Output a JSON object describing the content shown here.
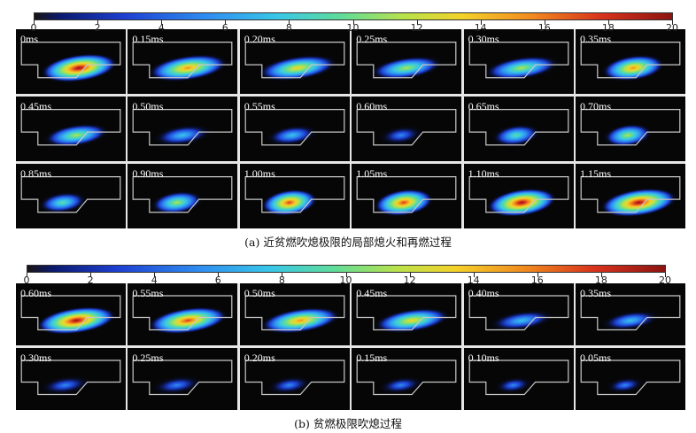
{
  "colorbar": {
    "ticks": [
      "0",
      "2",
      "4",
      "6",
      "8",
      "10",
      "12",
      "14",
      "16",
      "18",
      "20"
    ],
    "gradient": [
      "#1a1414",
      "#0b1a6e",
      "#1d3fd1",
      "#2f8df0",
      "#38c6e8",
      "#5fdc9a",
      "#b9e24a",
      "#f3d22a",
      "#f18a1f",
      "#d8321c",
      "#8c1410"
    ]
  },
  "panel_a": {
    "caption": "(a)  近贫燃吹熄极限的局部熄火和再燃过程",
    "frames": [
      {
        "label": "0ms",
        "intensity": 0.95,
        "spread": 0.75,
        "shift": 0.55
      },
      {
        "label": "0.15ms",
        "intensity": 0.8,
        "spread": 0.8,
        "shift": 0.5
      },
      {
        "label": "0.20ms",
        "intensity": 0.7,
        "spread": 0.8,
        "shift": 0.45
      },
      {
        "label": "0.25ms",
        "intensity": 0.55,
        "spread": 0.7,
        "shift": 0.4
      },
      {
        "label": "0.30ms",
        "intensity": 0.6,
        "spread": 0.75,
        "shift": 0.45
      },
      {
        "label": "0.35ms",
        "intensity": 0.8,
        "spread": 0.55,
        "shift": 0.45
      },
      {
        "label": "0.45ms",
        "intensity": 0.55,
        "spread": 0.6,
        "shift": 0.5
      },
      {
        "label": "0.50ms",
        "intensity": 0.4,
        "spread": 0.5,
        "shift": 0.4
      },
      {
        "label": "0.55ms",
        "intensity": 0.35,
        "spread": 0.4,
        "shift": 0.35
      },
      {
        "label": "0.60ms",
        "intensity": 0.3,
        "spread": 0.3,
        "shift": 0.3
      },
      {
        "label": "0.65ms",
        "intensity": 0.5,
        "spread": 0.35,
        "shift": 0.35
      },
      {
        "label": "0.70ms",
        "intensity": 0.6,
        "spread": 0.35,
        "shift": 0.35
      },
      {
        "label": "0.85ms",
        "intensity": 0.45,
        "spread": 0.35,
        "shift": 0.25
      },
      {
        "label": "0.90ms",
        "intensity": 0.6,
        "spread": 0.4,
        "shift": 0.3
      },
      {
        "label": "1.00ms",
        "intensity": 0.85,
        "spread": 0.45,
        "shift": 0.3
      },
      {
        "label": "1.05ms",
        "intensity": 0.9,
        "spread": 0.5,
        "shift": 0.35
      },
      {
        "label": "1.10ms",
        "intensity": 0.95,
        "spread": 0.65,
        "shift": 0.45
      },
      {
        "label": "1.15ms",
        "intensity": 0.95,
        "spread": 0.75,
        "shift": 0.55
      }
    ]
  },
  "panel_b": {
    "caption": "(b)  贫燃极限吹熄过程",
    "frames": [
      {
        "label": "0.60ms",
        "intensity": 0.95,
        "spread": 0.8,
        "shift": 0.5
      },
      {
        "label": "0.55ms",
        "intensity": 0.9,
        "spread": 0.8,
        "shift": 0.5
      },
      {
        "label": "0.50ms",
        "intensity": 0.8,
        "spread": 0.8,
        "shift": 0.5
      },
      {
        "label": "0.45ms",
        "intensity": 0.7,
        "spread": 0.75,
        "shift": 0.5
      },
      {
        "label": "0.40ms",
        "intensity": 0.4,
        "spread": 0.6,
        "shift": 0.45
      },
      {
        "label": "0.35ms",
        "intensity": 0.35,
        "spread": 0.5,
        "shift": 0.4
      },
      {
        "label": "0.30ms",
        "intensity": 0.3,
        "spread": 0.4,
        "shift": 0.3
      },
      {
        "label": "0.25ms",
        "intensity": 0.3,
        "spread": 0.4,
        "shift": 0.3
      },
      {
        "label": "0.20ms",
        "intensity": 0.25,
        "spread": 0.3,
        "shift": 0.3
      },
      {
        "label": "0.15ms",
        "intensity": 0.2,
        "spread": 0.3,
        "shift": 0.3
      },
      {
        "label": "0.10ms",
        "intensity": 0.15,
        "spread": 0.2,
        "shift": 0.3
      },
      {
        "label": "0.05ms",
        "intensity": 0.1,
        "spread": 0.2,
        "shift": 0.3
      }
    ]
  }
}
